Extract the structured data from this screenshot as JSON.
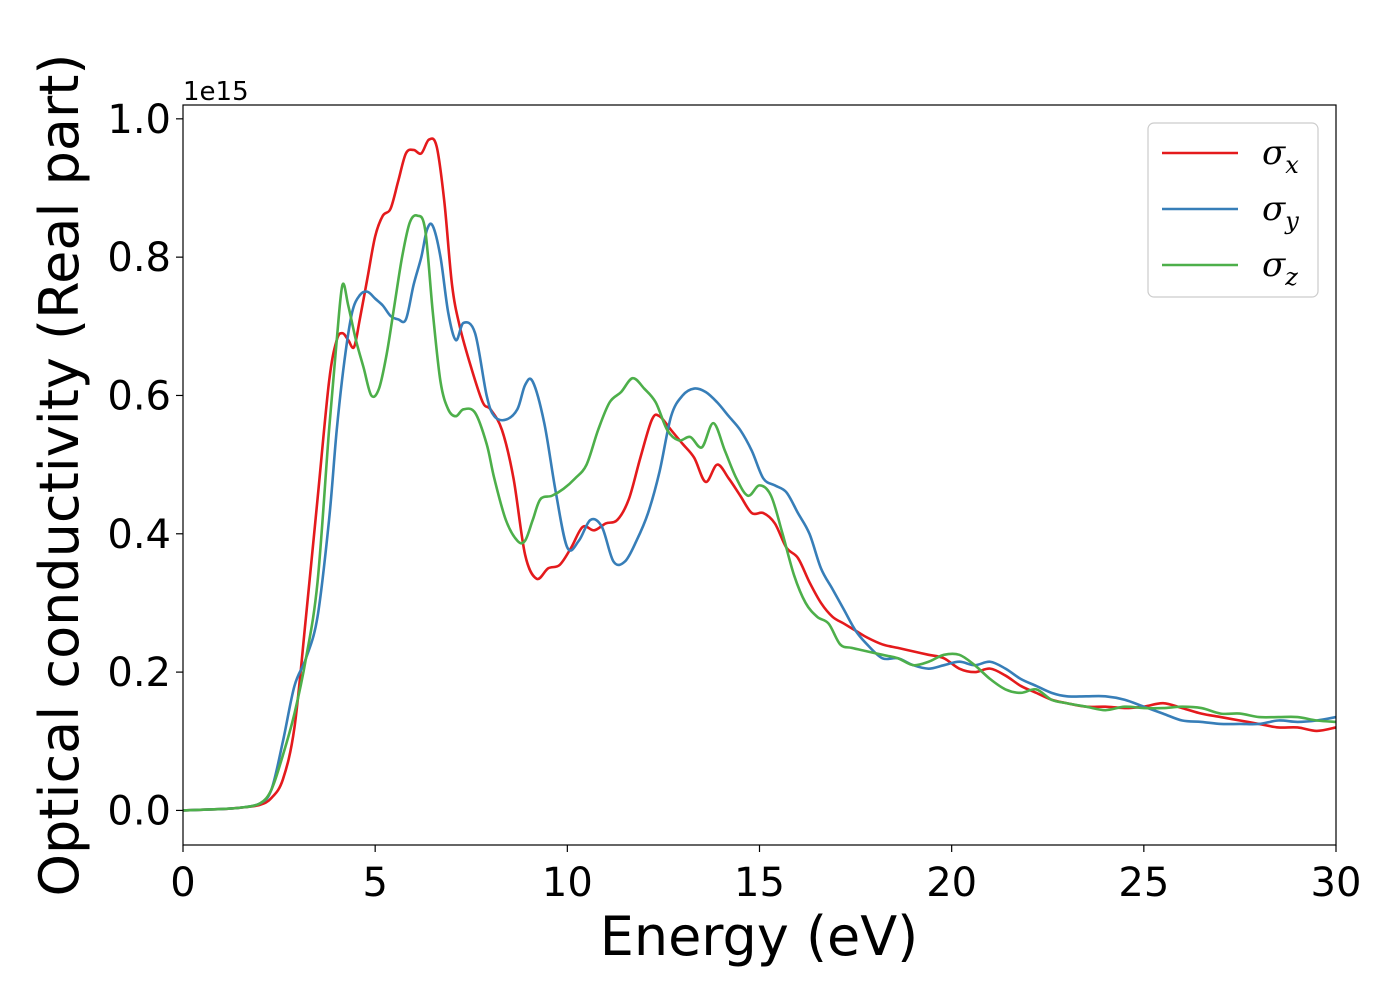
{
  "chart_data": {
    "type": "line",
    "title": "",
    "xlabel": "Energy (eV)",
    "ylabel": "Optical conductivity (Real part)",
    "y_offset_label": "1e15",
    "xlim": [
      0,
      30
    ],
    "ylim": [
      -0.05,
      1.02
    ],
    "xticks": [
      0,
      5,
      10,
      15,
      20,
      25,
      30
    ],
    "yticks": [
      0.0,
      0.2,
      0.4,
      0.6,
      0.8,
      1.0
    ],
    "grid": false,
    "legend_position": "top-right",
    "series": [
      {
        "name": "σ",
        "subscript": "x",
        "color": "#e41a1c",
        "x": [
          0,
          1,
          1.5,
          2,
          2.3,
          2.6,
          2.9,
          3.2,
          3.5,
          3.8,
          4.0,
          4.15,
          4.3,
          4.45,
          4.6,
          4.8,
          5.0,
          5.2,
          5.4,
          5.6,
          5.8,
          6.0,
          6.2,
          6.4,
          6.6,
          6.8,
          7.0,
          7.2,
          7.5,
          7.8,
          8.0,
          8.3,
          8.6,
          8.9,
          9.2,
          9.5,
          9.8,
          10.1,
          10.4,
          10.7,
          11.0,
          11.3,
          11.6,
          11.9,
          12.2,
          12.4,
          12.7,
          13.0,
          13.3,
          13.6,
          13.9,
          14.2,
          14.5,
          14.8,
          15.1,
          15.4,
          15.7,
          16.0,
          16.3,
          16.6,
          16.9,
          17.2,
          17.5,
          17.8,
          18.2,
          18.6,
          19.0,
          19.4,
          19.8,
          20.2,
          20.6,
          21.0,
          21.4,
          21.8,
          22.2,
          22.6,
          23.0,
          23.5,
          24.0,
          24.5,
          25.0,
          25.5,
          26.0,
          26.5,
          27.0,
          27.5,
          28.0,
          28.5,
          29.0,
          29.5,
          30.0
        ],
        "values": [
          0,
          0.002,
          0.004,
          0.008,
          0.018,
          0.045,
          0.12,
          0.28,
          0.45,
          0.62,
          0.68,
          0.69,
          0.68,
          0.67,
          0.71,
          0.77,
          0.83,
          0.86,
          0.87,
          0.91,
          0.95,
          0.955,
          0.95,
          0.97,
          0.96,
          0.88,
          0.76,
          0.7,
          0.64,
          0.59,
          0.58,
          0.55,
          0.48,
          0.37,
          0.335,
          0.35,
          0.355,
          0.38,
          0.41,
          0.405,
          0.415,
          0.42,
          0.45,
          0.51,
          0.565,
          0.57,
          0.55,
          0.53,
          0.51,
          0.475,
          0.5,
          0.48,
          0.455,
          0.43,
          0.43,
          0.415,
          0.38,
          0.365,
          0.33,
          0.3,
          0.28,
          0.27,
          0.26,
          0.25,
          0.24,
          0.235,
          0.23,
          0.225,
          0.22,
          0.205,
          0.2,
          0.205,
          0.195,
          0.18,
          0.17,
          0.16,
          0.155,
          0.15,
          0.15,
          0.148,
          0.15,
          0.155,
          0.148,
          0.14,
          0.135,
          0.13,
          0.125,
          0.12,
          0.12,
          0.115,
          0.12
        ]
      },
      {
        "name": "σ",
        "subscript": "y",
        "color": "#377eb8",
        "x": [
          0,
          1,
          1.5,
          2,
          2.3,
          2.6,
          2.9,
          3.2,
          3.5,
          3.8,
          4.0,
          4.2,
          4.4,
          4.6,
          4.8,
          5.0,
          5.2,
          5.4,
          5.6,
          5.8,
          6.0,
          6.2,
          6.35,
          6.5,
          6.7,
          6.9,
          7.1,
          7.3,
          7.6,
          7.9,
          8.1,
          8.4,
          8.7,
          8.9,
          9.1,
          9.4,
          9.7,
          10.0,
          10.3,
          10.6,
          10.9,
          11.2,
          11.5,
          11.8,
          12.1,
          12.4,
          12.7,
          13.0,
          13.3,
          13.6,
          13.9,
          14.2,
          14.5,
          14.8,
          15.1,
          15.4,
          15.7,
          16.0,
          16.3,
          16.6,
          16.9,
          17.2,
          17.5,
          17.8,
          18.2,
          18.6,
          19.0,
          19.4,
          19.8,
          20.2,
          20.6,
          21.0,
          21.4,
          21.8,
          22.2,
          22.6,
          23.0,
          23.5,
          24.0,
          24.5,
          25.0,
          25.5,
          26.0,
          26.5,
          27.0,
          27.5,
          28.0,
          28.5,
          29.0,
          29.5,
          30.0
        ],
        "values": [
          0,
          0.002,
          0.004,
          0.01,
          0.03,
          0.1,
          0.18,
          0.22,
          0.28,
          0.42,
          0.55,
          0.65,
          0.72,
          0.745,
          0.75,
          0.74,
          0.73,
          0.715,
          0.71,
          0.71,
          0.76,
          0.8,
          0.84,
          0.845,
          0.8,
          0.72,
          0.68,
          0.705,
          0.69,
          0.6,
          0.57,
          0.565,
          0.58,
          0.615,
          0.62,
          0.56,
          0.46,
          0.38,
          0.39,
          0.42,
          0.41,
          0.36,
          0.36,
          0.39,
          0.43,
          0.49,
          0.57,
          0.6,
          0.61,
          0.605,
          0.59,
          0.57,
          0.55,
          0.52,
          0.48,
          0.47,
          0.46,
          0.43,
          0.4,
          0.35,
          0.32,
          0.29,
          0.26,
          0.24,
          0.22,
          0.22,
          0.21,
          0.205,
          0.21,
          0.215,
          0.21,
          0.215,
          0.205,
          0.19,
          0.18,
          0.17,
          0.165,
          0.165,
          0.165,
          0.16,
          0.15,
          0.14,
          0.13,
          0.128,
          0.125,
          0.125,
          0.125,
          0.13,
          0.128,
          0.13,
          0.135
        ]
      },
      {
        "name": "σ",
        "subscript": "z",
        "color": "#4daf4a",
        "x": [
          0,
          1,
          1.5,
          2,
          2.3,
          2.6,
          2.9,
          3.2,
          3.5,
          3.8,
          4.0,
          4.15,
          4.3,
          4.5,
          4.7,
          4.9,
          5.1,
          5.3,
          5.5,
          5.7,
          5.9,
          6.1,
          6.3,
          6.5,
          6.7,
          6.9,
          7.1,
          7.3,
          7.6,
          7.9,
          8.1,
          8.4,
          8.7,
          8.9,
          9.1,
          9.3,
          9.6,
          9.9,
          10.2,
          10.5,
          10.8,
          11.1,
          11.4,
          11.7,
          12.0,
          12.3,
          12.6,
          12.9,
          13.2,
          13.5,
          13.8,
          14.1,
          14.4,
          14.7,
          15.0,
          15.3,
          15.6,
          15.9,
          16.2,
          16.5,
          16.8,
          17.1,
          17.4,
          17.8,
          18.2,
          18.6,
          19.0,
          19.4,
          19.8,
          20.2,
          20.6,
          21.0,
          21.4,
          21.8,
          22.2,
          22.6,
          23.0,
          23.5,
          24.0,
          24.5,
          25.0,
          25.5,
          26.0,
          26.5,
          27.0,
          27.5,
          28.0,
          28.5,
          29.0,
          29.5,
          30.0
        ],
        "values": [
          0,
          0.002,
          0.004,
          0.01,
          0.03,
          0.08,
          0.14,
          0.22,
          0.33,
          0.55,
          0.68,
          0.76,
          0.73,
          0.68,
          0.64,
          0.6,
          0.61,
          0.66,
          0.73,
          0.8,
          0.85,
          0.86,
          0.84,
          0.72,
          0.62,
          0.58,
          0.57,
          0.58,
          0.575,
          0.53,
          0.48,
          0.42,
          0.39,
          0.39,
          0.42,
          0.45,
          0.455,
          0.465,
          0.48,
          0.5,
          0.55,
          0.59,
          0.605,
          0.625,
          0.61,
          0.59,
          0.55,
          0.535,
          0.54,
          0.525,
          0.56,
          0.52,
          0.48,
          0.455,
          0.47,
          0.455,
          0.4,
          0.34,
          0.3,
          0.28,
          0.27,
          0.24,
          0.235,
          0.23,
          0.225,
          0.22,
          0.21,
          0.215,
          0.225,
          0.225,
          0.21,
          0.19,
          0.175,
          0.17,
          0.175,
          0.16,
          0.155,
          0.15,
          0.145,
          0.15,
          0.148,
          0.148,
          0.15,
          0.148,
          0.14,
          0.14,
          0.135,
          0.135,
          0.135,
          0.13,
          0.128
        ]
      }
    ]
  }
}
